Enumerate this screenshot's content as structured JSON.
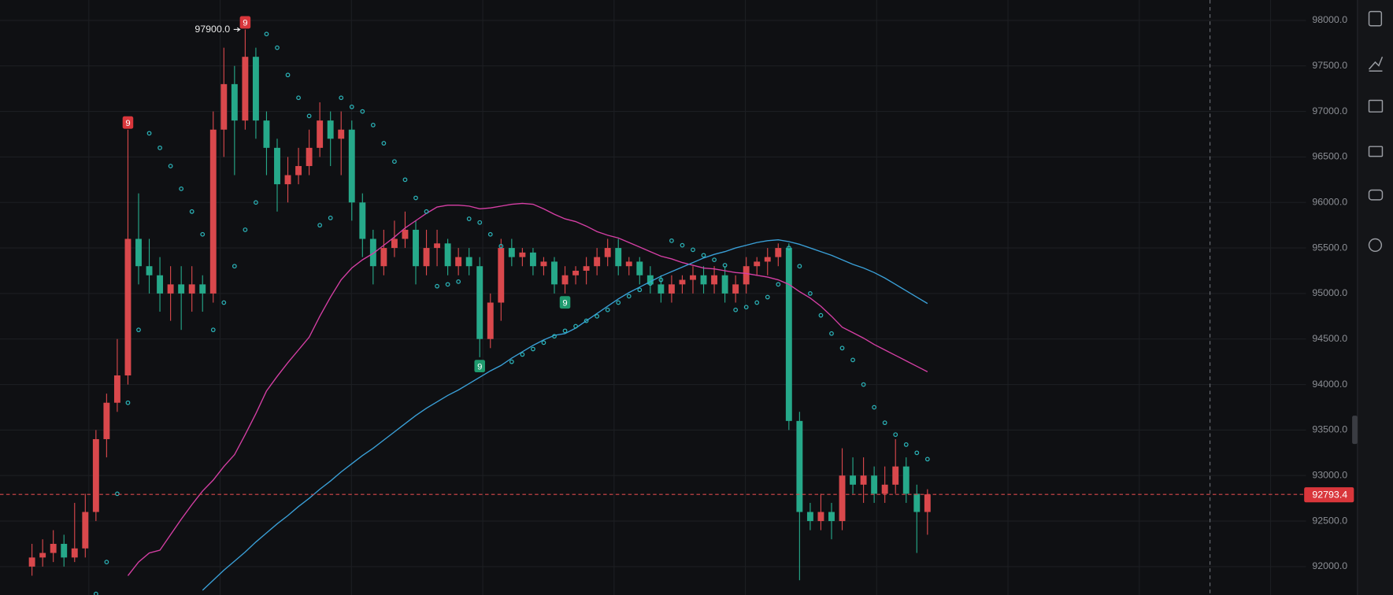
{
  "chart_data": {
    "type": "candlestick",
    "ylim": [
      91688,
      98224
    ],
    "yticks": [
      {
        "value": 92000,
        "label": "92000.0"
      },
      {
        "value": 92500,
        "label": "92500.0"
      },
      {
        "value": 93000,
        "label": "93000.0"
      },
      {
        "value": 93500,
        "label": "93500.0"
      },
      {
        "value": 94000,
        "label": "94000.0"
      },
      {
        "value": 94500,
        "label": "94500.0"
      },
      {
        "value": 95000,
        "label": "95000.0"
      },
      {
        "value": 95500,
        "label": "95500.0"
      },
      {
        "value": 96000,
        "label": "96000.0"
      },
      {
        "value": 96500,
        "label": "96500.0"
      },
      {
        "value": 97000,
        "label": "97000.0"
      },
      {
        "value": 97500,
        "label": "97500.0"
      },
      {
        "value": 98000,
        "label": "98000.0"
      }
    ],
    "grid": true,
    "up_color": "#d9484c",
    "down_color": "#26a98a",
    "candles": [
      [
        92000,
        92250,
        91900,
        92100
      ],
      [
        92100,
        92300,
        92000,
        92150
      ],
      [
        92150,
        92400,
        92050,
        92250
      ],
      [
        92250,
        92350,
        92000,
        92100
      ],
      [
        92100,
        92700,
        92050,
        92200
      ],
      [
        92200,
        92800,
        92100,
        92600
      ],
      [
        92600,
        93500,
        92500,
        93400
      ],
      [
        93400,
        93900,
        93200,
        93800
      ],
      [
        93800,
        94500,
        93700,
        94100
      ],
      [
        94100,
        96800,
        94000,
        95600
      ],
      [
        95600,
        96100,
        95100,
        95300
      ],
      [
        95300,
        95600,
        95000,
        95200
      ],
      [
        95200,
        95400,
        94800,
        95000
      ],
      [
        95000,
        95300,
        94700,
        95100
      ],
      [
        95100,
        95300,
        94600,
        95000
      ],
      [
        95000,
        95300,
        94800,
        95100
      ],
      [
        95100,
        95200,
        94800,
        95000
      ],
      [
        95000,
        97000,
        94900,
        96800
      ],
      [
        96800,
        97700,
        96500,
        97300
      ],
      [
        97300,
        97500,
        96300,
        96900
      ],
      [
        96900,
        97900,
        96800,
        97600
      ],
      [
        97600,
        97700,
        96700,
        96900
      ],
      [
        96900,
        97000,
        96300,
        96600
      ],
      [
        96600,
        96700,
        95900,
        96200
      ],
      [
        96200,
        96500,
        96000,
        96300
      ],
      [
        96300,
        96600,
        96200,
        96400
      ],
      [
        96400,
        96800,
        96300,
        96600
      ],
      [
        96600,
        97100,
        96500,
        96900
      ],
      [
        96900,
        97000,
        96400,
        96700
      ],
      [
        96700,
        97000,
        96300,
        96800
      ],
      [
        96800,
        96900,
        95800,
        96000
      ],
      [
        96000,
        96100,
        95400,
        95600
      ],
      [
        95600,
        95700,
        95100,
        95300
      ],
      [
        95300,
        95700,
        95200,
        95500
      ],
      [
        95500,
        95800,
        95400,
        95600
      ],
      [
        95600,
        95900,
        95500,
        95700
      ],
      [
        95700,
        95800,
        95100,
        95300
      ],
      [
        95300,
        95700,
        95200,
        95500
      ],
      [
        95500,
        95700,
        95300,
        95550
      ],
      [
        95550,
        95600,
        95200,
        95300
      ],
      [
        95300,
        95500,
        95200,
        95400
      ],
      [
        95400,
        95500,
        95200,
        95300
      ],
      [
        95300,
        95400,
        94300,
        94500
      ],
      [
        94500,
        95000,
        94400,
        94900
      ],
      [
        94900,
        95600,
        94700,
        95500
      ],
      [
        95500,
        95600,
        95300,
        95400
      ],
      [
        95400,
        95500,
        95300,
        95450
      ],
      [
        95450,
        95500,
        95200,
        95300
      ],
      [
        95300,
        95400,
        95200,
        95350
      ],
      [
        95350,
        95400,
        95000,
        95100
      ],
      [
        95100,
        95300,
        95000,
        95200
      ],
      [
        95200,
        95300,
        95100,
        95250
      ],
      [
        95250,
        95400,
        95100,
        95300
      ],
      [
        95300,
        95500,
        95200,
        95400
      ],
      [
        95400,
        95600,
        95300,
        95500
      ],
      [
        95500,
        95600,
        95200,
        95300
      ],
      [
        95300,
        95400,
        95200,
        95350
      ],
      [
        95350,
        95400,
        95100,
        95200
      ],
      [
        95200,
        95300,
        95000,
        95100
      ],
      [
        95100,
        95200,
        94900,
        95000
      ],
      [
        95000,
        95200,
        94900,
        95100
      ],
      [
        95100,
        95200,
        95000,
        95150
      ],
      [
        95150,
        95300,
        95000,
        95200
      ],
      [
        95200,
        95300,
        95000,
        95100
      ],
      [
        95100,
        95300,
        95000,
        95200
      ],
      [
        95200,
        95300,
        94900,
        95000
      ],
      [
        95000,
        95200,
        94900,
        95100
      ],
      [
        95100,
        95400,
        95000,
        95300
      ],
      [
        95300,
        95400,
        95200,
        95350
      ],
      [
        95350,
        95500,
        95200,
        95400
      ],
      [
        95400,
        95550,
        95300,
        95500
      ],
      [
        95500,
        95550,
        93500,
        93600
      ],
      [
        93600,
        93700,
        91850,
        92600
      ],
      [
        92600,
        92700,
        92400,
        92500
      ],
      [
        92500,
        92800,
        92400,
        92600
      ],
      [
        92600,
        92700,
        92300,
        92500
      ],
      [
        92500,
        93300,
        92400,
        93000
      ],
      [
        93000,
        93200,
        92800,
        92900
      ],
      [
        92900,
        93200,
        92700,
        93000
      ],
      [
        93000,
        93100,
        92700,
        92800
      ],
      [
        92800,
        93100,
        92700,
        92900
      ],
      [
        92900,
        93400,
        92800,
        93100
      ],
      [
        93100,
        93200,
        92700,
        92800
      ],
      [
        92800,
        92900,
        92150,
        92600
      ],
      [
        92600,
        92850,
        92350,
        92793.4
      ]
    ],
    "overlays": [
      {
        "color": "#d63fa5",
        "values": [
          null,
          null,
          null,
          null,
          null,
          null,
          null,
          null,
          null,
          91900,
          92050,
          92150,
          92180,
          92350,
          92520,
          92680,
          92830,
          92950,
          93100,
          93230,
          93450,
          93680,
          93930,
          94090,
          94240,
          94380,
          94520,
          94750,
          94960,
          95150,
          95280,
          95370,
          95440,
          95530,
          95620,
          95720,
          95800,
          95880,
          95950,
          95970,
          95970,
          95960,
          95930,
          95940,
          95960,
          95980,
          95990,
          95980,
          95930,
          95870,
          95820,
          95790,
          95740,
          95680,
          95640,
          95610,
          95560,
          95510,
          95460,
          95410,
          95380,
          95340,
          95310,
          95280,
          95270,
          95250,
          95230,
          95220,
          95200,
          95180,
          95150,
          95100,
          95020,
          94950,
          94860,
          94750,
          94630,
          94570,
          94510,
          94440,
          94380,
          94320,
          94260,
          94200,
          94140
        ]
      },
      {
        "color": "#3aa0d8",
        "values": [
          null,
          null,
          null,
          null,
          null,
          null,
          null,
          null,
          null,
          null,
          null,
          null,
          null,
          null,
          null,
          null,
          91740,
          91850,
          91960,
          92060,
          92160,
          92270,
          92370,
          92470,
          92560,
          92660,
          92750,
          92850,
          92940,
          93040,
          93130,
          93220,
          93300,
          93390,
          93480,
          93570,
          93660,
          93740,
          93810,
          93880,
          93940,
          94010,
          94080,
          94150,
          94210,
          94290,
          94360,
          94430,
          94490,
          94540,
          94560,
          94620,
          94700,
          94780,
          94860,
          94940,
          95010,
          95070,
          95130,
          95190,
          95240,
          95290,
          95340,
          95390,
          95430,
          95460,
          95500,
          95530,
          95560,
          95580,
          95590,
          95570,
          95540,
          95500,
          95460,
          95420,
          95370,
          95320,
          95280,
          95230,
          95170,
          95100,
          95030,
          94960,
          94890
        ]
      }
    ],
    "sar": {
      "color": "#2bb3b8",
      "values": [
        null,
        null,
        null,
        null,
        null,
        null,
        91700,
        92050,
        92800,
        93800,
        94600,
        96760,
        96600,
        96400,
        96150,
        95900,
        95650,
        94600,
        94900,
        95300,
        95700,
        96000,
        97850,
        97700,
        97400,
        97150,
        96950,
        95750,
        95830,
        97150,
        97050,
        97000,
        96850,
        96650,
        96450,
        96250,
        96050,
        95900,
        95080,
        95100,
        95130,
        95820,
        95780,
        95650,
        95520,
        94250,
        94330,
        94390,
        94460,
        94530,
        94590,
        94640,
        94700,
        94750,
        94820,
        94900,
        94970,
        95040,
        95110,
        95150,
        95580,
        95530,
        95480,
        95420,
        95370,
        95310,
        94820,
        94850,
        94900,
        94960,
        95100,
        95500,
        95300,
        95000,
        94760,
        94560,
        94400,
        94270,
        94000,
        93750,
        93580,
        93450,
        93340,
        93250,
        93180
      ]
    },
    "td_markers": [
      {
        "candle": 9,
        "label": "9",
        "color": "#d9363b"
      },
      {
        "candle": 20,
        "label": "9",
        "color": "#d9363b"
      },
      {
        "candle": 42,
        "label": "9",
        "color": "#1f9a6e"
      },
      {
        "candle": 50,
        "label": "9",
        "color": "#1f9a6e"
      }
    ],
    "max_label": {
      "value": 97900,
      "label": "97900.0"
    },
    "last_price": 92793.4
  }
}
